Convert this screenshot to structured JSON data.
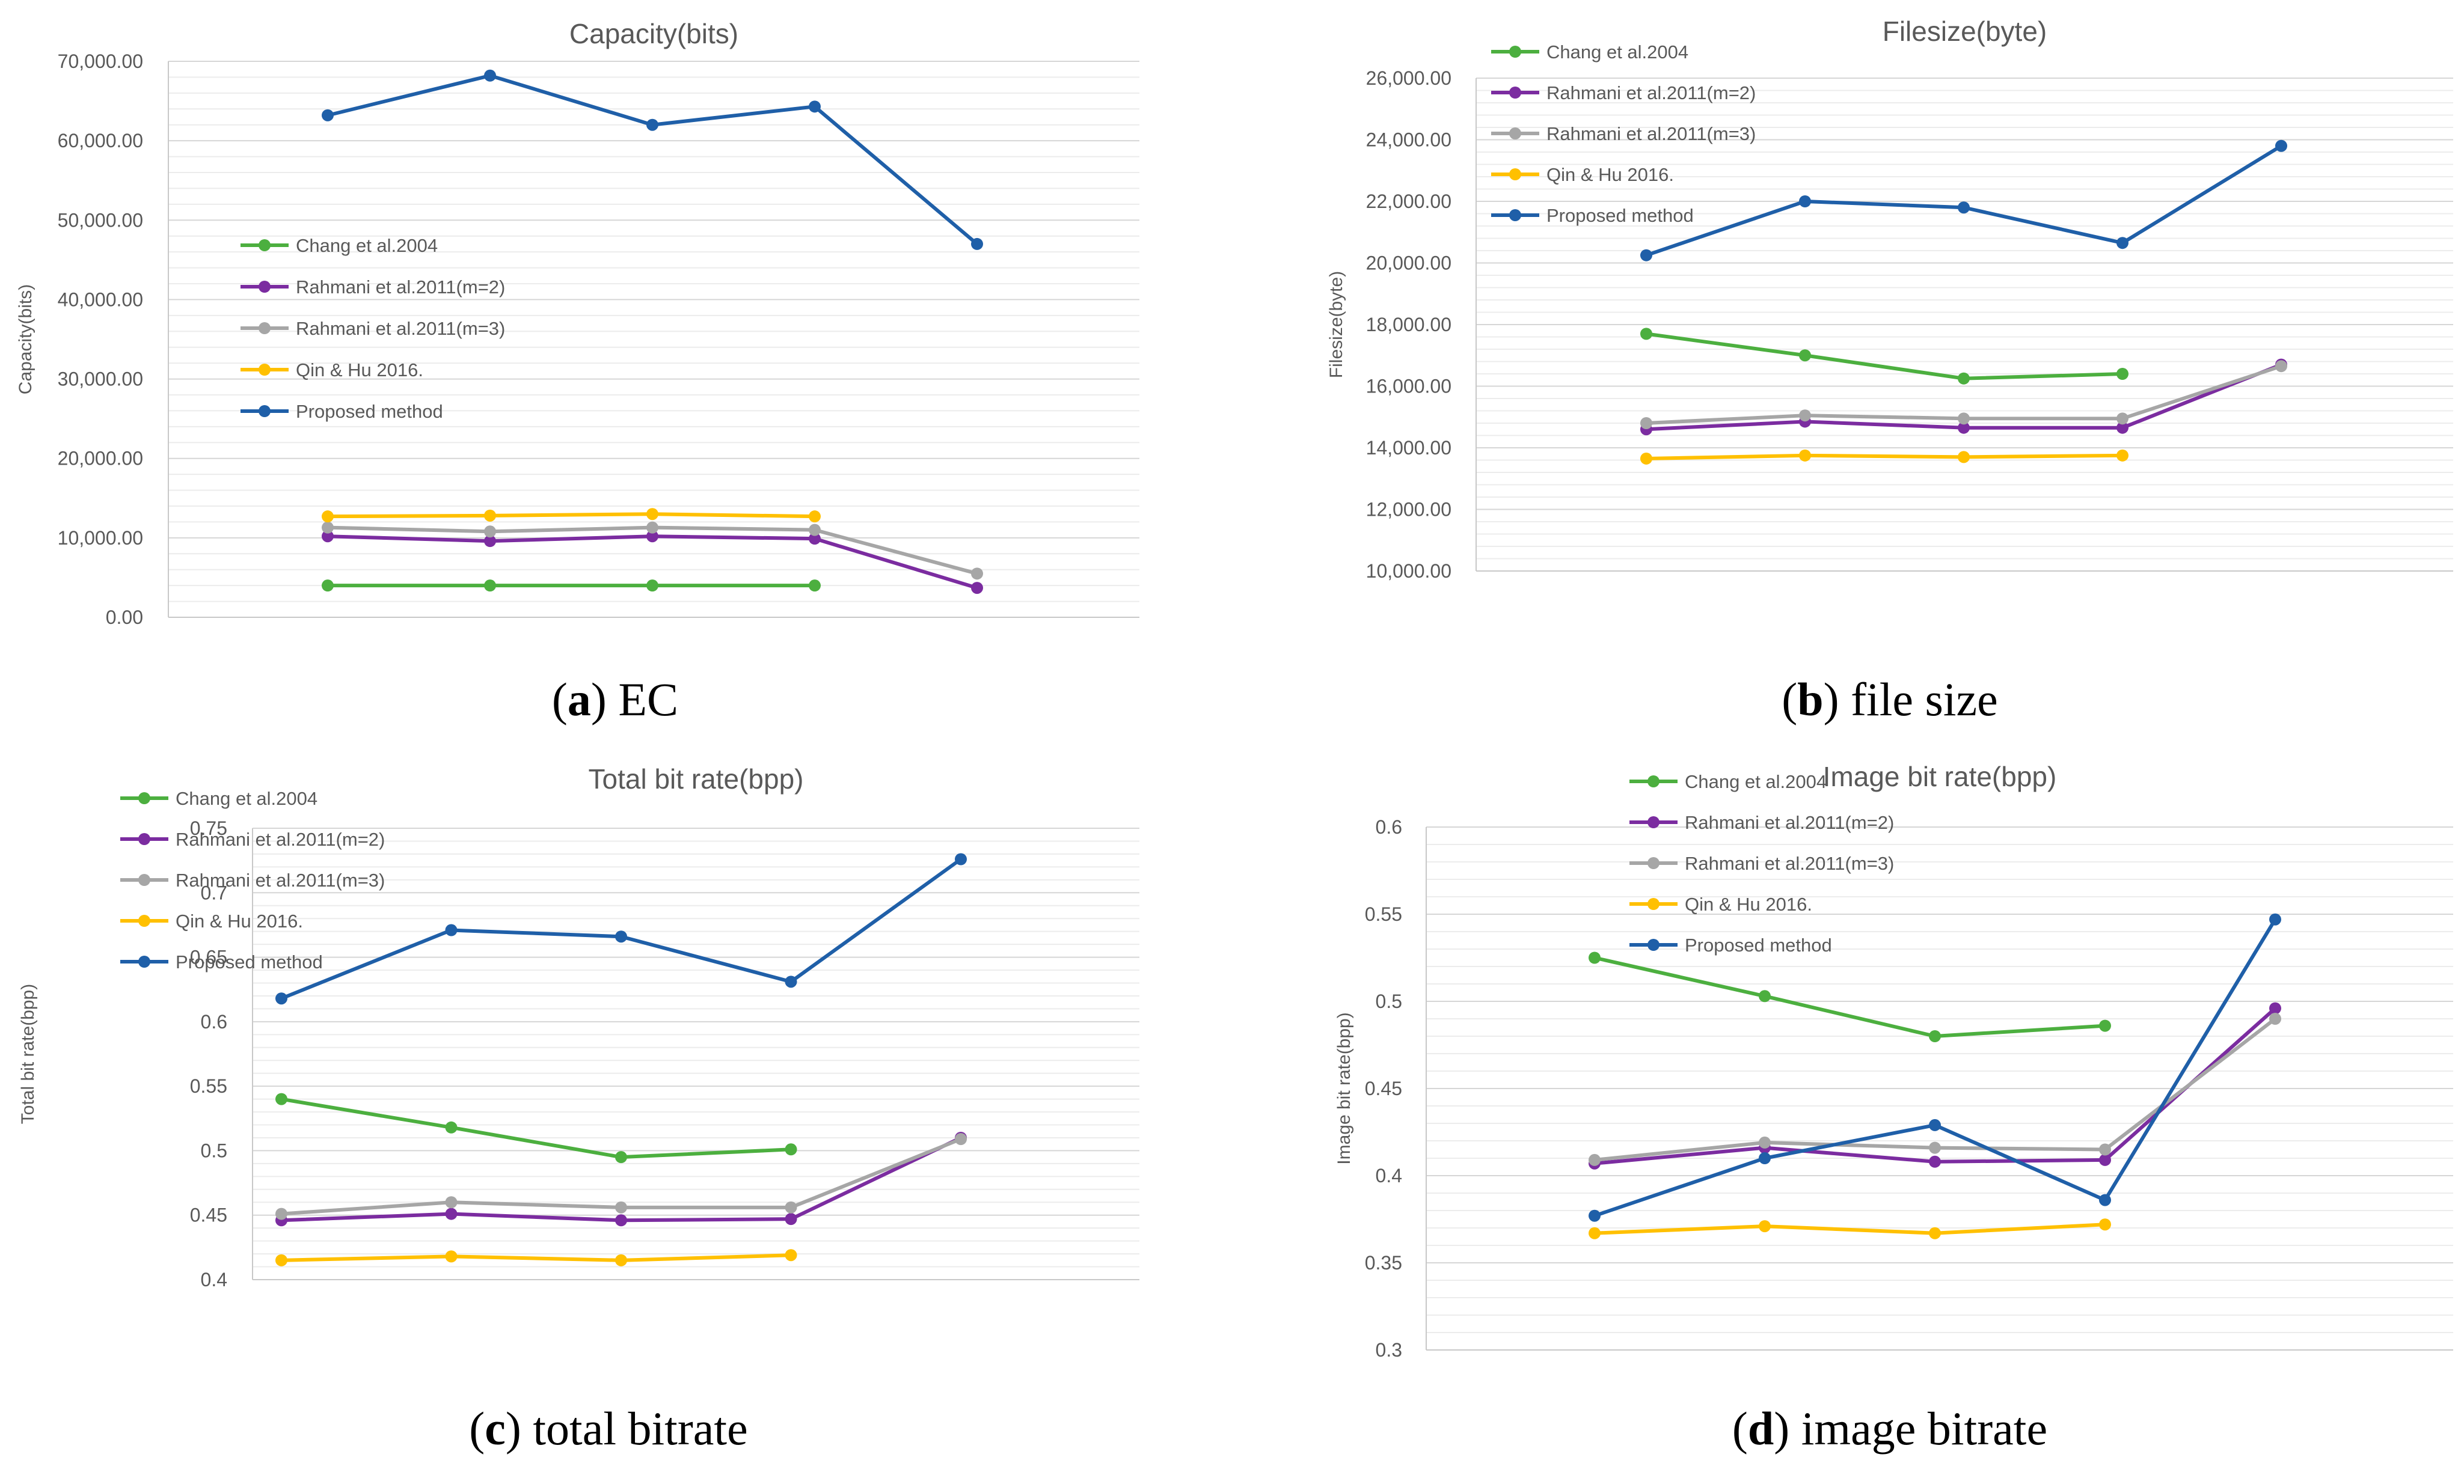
{
  "chart_data": [
    {
      "type": "line",
      "id": "a",
      "title": "Capacity(bits)",
      "ylabel": "Capacity(bits)",
      "xlabel": "",
      "ylim": [
        0,
        70000
      ],
      "ytick_step": 10000,
      "ytick_labels": [
        "0.00",
        "10,000.00",
        "20,000.00",
        "30,000.00",
        "40,000.00",
        "50,000.00",
        "60,000.00",
        "70,000.00"
      ],
      "legend_position": "middle-left",
      "caption": {
        "letter": "a",
        "text": "EC"
      },
      "series": [
        {
          "name": "Chang et al.2004",
          "color": "#4caf3f",
          "values": [
            4000,
            4000,
            4000,
            4000,
            null
          ]
        },
        {
          "name": "Rahmani et al.2011(m=2)",
          "color": "#7b2ca0",
          "values": [
            10200,
            9600,
            10200,
            9900,
            3700
          ]
        },
        {
          "name": "Rahmani et al.2011(m=3)",
          "color": "#a6a6a6",
          "values": [
            11300,
            10800,
            11300,
            11000,
            5500
          ]
        },
        {
          "name": "Qin & Hu 2016.",
          "color": "#ffc000",
          "values": [
            12700,
            12800,
            13000,
            12700,
            null
          ]
        },
        {
          "name": "Proposed method",
          "color": "#1f5fa8",
          "values": [
            63200,
            68200,
            62000,
            64300,
            47000
          ]
        }
      ]
    },
    {
      "type": "line",
      "id": "b",
      "title": "Filesize(byte)",
      "ylabel": "Filesize(byte)",
      "xlabel": "",
      "ylim": [
        10000,
        26000
      ],
      "ytick_step": 2000,
      "ytick_labels": [
        "10,000.00",
        "12,000.00",
        "14,000.00",
        "16,000.00",
        "18,000.00",
        "20,000.00",
        "22,000.00",
        "24,000.00",
        "26,000.00"
      ],
      "legend_position": "top-left",
      "caption": {
        "letter": "b",
        "text": "file size"
      },
      "series": [
        {
          "name": "Chang et al.2004",
          "color": "#4caf3f",
          "values": [
            17700,
            17000,
            16250,
            16400,
            null
          ]
        },
        {
          "name": "Rahmani et al.2011(m=2)",
          "color": "#7b2ca0",
          "values": [
            14600,
            14850,
            14650,
            14650,
            16700
          ]
        },
        {
          "name": "Rahmani et al.2011(m=3)",
          "color": "#a6a6a6",
          "values": [
            14800,
            15050,
            14950,
            14950,
            16650
          ]
        },
        {
          "name": "Qin & Hu 2016.",
          "color": "#ffc000",
          "values": [
            13650,
            13750,
            13700,
            13750,
            null
          ]
        },
        {
          "name": "Proposed method",
          "color": "#1f5fa8",
          "values": [
            20250,
            22000,
            21800,
            20650,
            23800
          ]
        }
      ]
    },
    {
      "type": "line",
      "id": "c",
      "title": "Total bit rate(bpp)",
      "ylabel": "Total bit rate(bpp)",
      "xlabel": "",
      "ylim": [
        0.4,
        0.75
      ],
      "ytick_step": 0.05,
      "ytick_labels": [
        "0.4",
        "0.45",
        "0.5",
        "0.55",
        "0.6",
        "0.65",
        "0.7",
        "0.75"
      ],
      "legend_position": "top-left",
      "caption": {
        "letter": "c",
        "text": "total bitrate"
      },
      "series": [
        {
          "name": "Chang et al.2004",
          "color": "#4caf3f",
          "values": [
            0.54,
            0.518,
            0.495,
            0.501,
            null
          ]
        },
        {
          "name": "Rahmani et al.2011(m=2)",
          "color": "#7b2ca0",
          "values": [
            0.446,
            0.451,
            0.446,
            0.447,
            0.51
          ]
        },
        {
          "name": "Rahmani et al.2011(m=3)",
          "color": "#a6a6a6",
          "values": [
            0.451,
            0.46,
            0.456,
            0.456,
            0.509
          ]
        },
        {
          "name": "Qin & Hu 2016.",
          "color": "#ffc000",
          "values": [
            0.415,
            0.418,
            0.415,
            0.419,
            null
          ]
        },
        {
          "name": "Proposed method",
          "color": "#1f5fa8",
          "values": [
            0.618,
            0.671,
            0.666,
            0.631,
            0.726
          ]
        }
      ]
    },
    {
      "type": "line",
      "id": "d",
      "title": "Image bit rate(bpp)",
      "ylabel": "Image bit rate(bpp)",
      "xlabel": "",
      "ylim": [
        0.3,
        0.6
      ],
      "ytick_step": 0.05,
      "ytick_labels": [
        "0.3",
        "0.35",
        "0.4",
        "0.45",
        "0.5",
        "0.55",
        "0.6"
      ],
      "legend_position": "top-left",
      "caption": {
        "letter": "d",
        "text": "image bitrate"
      },
      "series": [
        {
          "name": "Chang et al.2004",
          "color": "#4caf3f",
          "values": [
            0.525,
            0.503,
            0.48,
            0.486,
            null
          ]
        },
        {
          "name": "Rahmani et al.2011(m=2)",
          "color": "#7b2ca0",
          "values": [
            0.407,
            0.416,
            0.408,
            0.409,
            0.496
          ]
        },
        {
          "name": "Rahmani et al.2011(m=3)",
          "color": "#a6a6a6",
          "values": [
            0.409,
            0.419,
            0.416,
            0.415,
            0.49
          ]
        },
        {
          "name": "Qin & Hu 2016.",
          "color": "#ffc000",
          "values": [
            0.367,
            0.371,
            0.367,
            0.372,
            null
          ]
        },
        {
          "name": "Proposed method",
          "color": "#1f5fa8",
          "values": [
            0.377,
            0.41,
            0.429,
            0.386,
            0.547
          ]
        }
      ]
    }
  ]
}
